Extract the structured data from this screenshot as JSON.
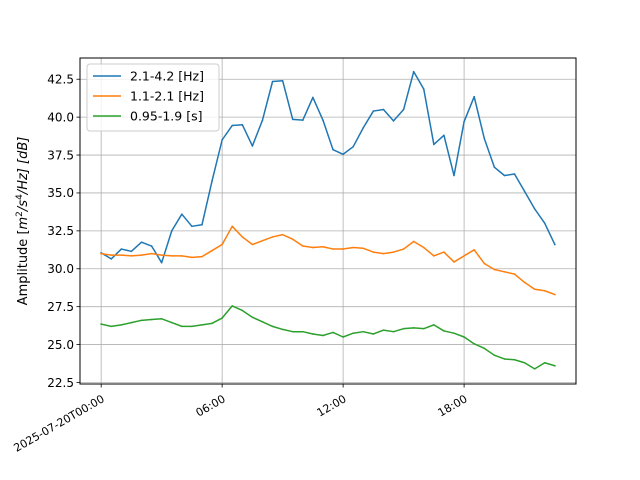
{
  "chart_data": {
    "type": "line",
    "title": "",
    "xlabel": "",
    "ylabel_parts": {
      "prefix": "Amplitude [",
      "m": "m",
      "m_exp": "2",
      "s": "/s",
      "s_exp": "4",
      "hz": "/Hz] [dB]"
    },
    "grid": true,
    "legend_placement": "top-left",
    "x_unit": "hours",
    "xlim": [
      -1.05,
      23.55
    ],
    "ylim": [
      22.4,
      43.9
    ],
    "x_ticks": [
      {
        "value": 0,
        "label": "2025-07-20T00:00"
      },
      {
        "value": 6,
        "label": "06:00"
      },
      {
        "value": 12,
        "label": "12:00"
      },
      {
        "value": 18,
        "label": "18:00"
      }
    ],
    "y_ticks": [
      {
        "value": 22.5,
        "label": "22.5"
      },
      {
        "value": 25.0,
        "label": "25.0"
      },
      {
        "value": 27.5,
        "label": "27.5"
      },
      {
        "value": 30.0,
        "label": "30.0"
      },
      {
        "value": 32.5,
        "label": "32.5"
      },
      {
        "value": 35.0,
        "label": "35.0"
      },
      {
        "value": 37.5,
        "label": "37.5"
      },
      {
        "value": 40.0,
        "label": "40.0"
      },
      {
        "value": 42.5,
        "label": "42.5"
      }
    ],
    "x": [
      0,
      0.5,
      1,
      1.5,
      2,
      2.5,
      3,
      3.5,
      4,
      4.5,
      5,
      5.5,
      6,
      6.5,
      7,
      7.5,
      8,
      8.5,
      9,
      9.5,
      10,
      10.5,
      11,
      11.5,
      12,
      12.5,
      13,
      13.5,
      14,
      14.5,
      15,
      15.5,
      16,
      16.5,
      17,
      17.5,
      18,
      18.5,
      19,
      19.5,
      20,
      20.5,
      21,
      21.5,
      22,
      22.5
    ],
    "series": [
      {
        "name": "2.1-4.2 [Hz]",
        "color": "#1f77b4",
        "values": [
          31.05,
          30.65,
          31.3,
          31.15,
          31.75,
          31.5,
          30.4,
          32.5,
          33.6,
          32.8,
          32.9,
          35.8,
          38.5,
          39.45,
          39.5,
          38.1,
          39.8,
          42.35,
          42.4,
          39.85,
          39.8,
          41.3,
          39.8,
          37.85,
          37.55,
          38.05,
          39.3,
          40.4,
          40.5,
          39.75,
          40.5,
          43.0,
          41.85,
          38.2,
          38.8,
          36.15,
          39.7,
          41.35,
          38.6,
          36.7,
          36.15,
          36.25,
          35.1,
          33.95,
          33.0,
          31.6
        ]
      },
      {
        "name": "1.1-2.1 [Hz]",
        "color": "#ff7f0e",
        "values": [
          31.0,
          30.9,
          30.9,
          30.85,
          30.9,
          31.0,
          30.9,
          30.85,
          30.85,
          30.75,
          30.8,
          31.2,
          31.6,
          32.8,
          32.1,
          31.6,
          31.85,
          32.1,
          32.25,
          31.95,
          31.5,
          31.4,
          31.45,
          31.3,
          31.3,
          31.4,
          31.35,
          31.1,
          31.0,
          31.1,
          31.3,
          31.8,
          31.4,
          30.85,
          31.1,
          30.45,
          30.85,
          31.25,
          30.35,
          29.95,
          29.8,
          29.65,
          29.1,
          28.65,
          28.55,
          28.3
        ]
      },
      {
        "name": "0.95-1.9 [s]",
        "color": "#2ca02c",
        "values": [
          26.35,
          26.2,
          26.3,
          26.45,
          26.6,
          26.65,
          26.7,
          26.45,
          26.2,
          26.2,
          26.3,
          26.4,
          26.75,
          27.55,
          27.25,
          26.8,
          26.5,
          26.2,
          26.0,
          25.85,
          25.85,
          25.7,
          25.6,
          25.8,
          25.5,
          25.75,
          25.85,
          25.7,
          25.95,
          25.85,
          26.05,
          26.1,
          26.05,
          26.3,
          25.9,
          25.75,
          25.5,
          25.05,
          24.75,
          24.3,
          24.05,
          24.0,
          23.8,
          23.4,
          23.8,
          23.6
        ]
      }
    ]
  }
}
